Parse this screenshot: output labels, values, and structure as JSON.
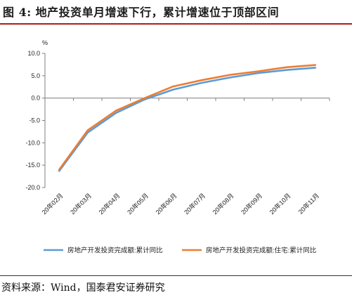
{
  "header": {
    "title": "图 4: 地产投资单月增速下行，累计增速位于顶部区间"
  },
  "footer": {
    "source": "资料来源：Wind，国泰君安证券研究"
  },
  "colors": {
    "series_1": "#5b9bd5",
    "series_2": "#ed7d31",
    "accent_rule": "#b01c1c"
  },
  "chart_data": {
    "type": "line",
    "title": "",
    "unit_label": "%",
    "xlabel": "",
    "ylabel": "",
    "ylim": [
      -20,
      10
    ],
    "yticks": [
      "10.0",
      "5.0",
      "0.0",
      "-5.0",
      "-10.0",
      "-15.0",
      "-20.0"
    ],
    "categories": [
      "20年02月",
      "20年03月",
      "20年04月",
      "20年05月",
      "20年06月",
      "20年07月",
      "20年08月",
      "20年09月",
      "20年10月",
      "20年11月"
    ],
    "series": [
      {
        "name": "房地产开发投资完成额:累计同比",
        "values": [
          -16.3,
          -7.7,
          -3.3,
          -0.3,
          1.9,
          3.4,
          4.6,
          5.6,
          6.3,
          6.8
        ]
      },
      {
        "name": "房地产开发投资完成额:住宅:累计同比",
        "values": [
          -16.0,
          -7.2,
          -2.8,
          0.0,
          2.6,
          4.0,
          5.2,
          6.0,
          6.9,
          7.4
        ]
      }
    ],
    "grid": false,
    "legend_position": "bottom"
  }
}
